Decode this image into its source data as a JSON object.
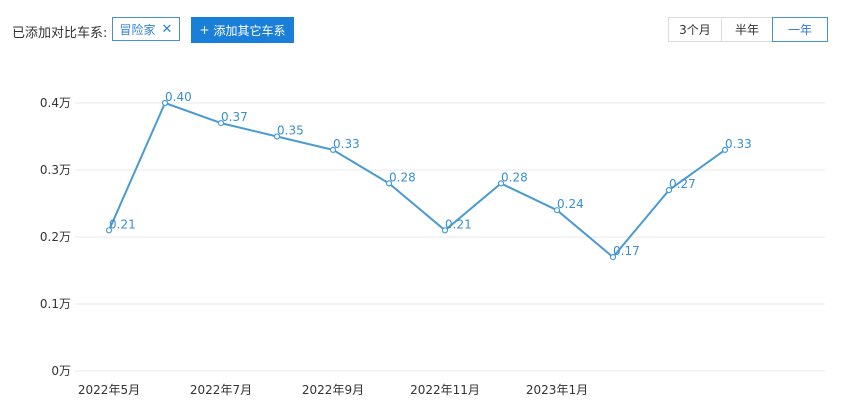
{
  "toolbar": {
    "added_label": "已添加对比车系:",
    "chip_label": "冒险家",
    "chip_close": "✕",
    "add_button_plus": "+",
    "add_button_label": "添加其它车系",
    "ranges": [
      "3个月",
      "半年",
      "一年"
    ],
    "active_range": "一年"
  },
  "colors": {
    "line": "#4a9bd4",
    "label": "#3a8fd0",
    "grid": "#e8e8e8",
    "accent": "#1a7fd9"
  },
  "chart_data": {
    "type": "line",
    "x": [
      "2022年5月",
      "2022年6月",
      "2022年7月",
      "2022年8月",
      "2022年9月",
      "2022年10月",
      "2022年11月",
      "2022年12月",
      "2023年1月",
      "2023年2月",
      "2023年3月",
      "2023年4月"
    ],
    "x_tick_labels": [
      "2022年5月",
      "2022年7月",
      "2022年9月",
      "2022年11月",
      "2023年1月"
    ],
    "values": [
      0.21,
      0.4,
      0.37,
      0.35,
      0.33,
      0.28,
      0.21,
      0.28,
      0.24,
      0.17,
      0.27,
      0.33
    ],
    "data_labels": [
      "0.21",
      "0.40",
      "0.37",
      "0.35",
      "0.33",
      "0.28",
      "0.21",
      "0.28",
      "0.24",
      "0.17",
      "0.27",
      "0.33"
    ],
    "y_ticks": [
      0,
      0.1,
      0.2,
      0.3,
      0.4
    ],
    "y_tick_labels": [
      "0万",
      "0.1万",
      "0.2万",
      "0.3万",
      "0.4万"
    ],
    "ylim": [
      0,
      0.4
    ],
    "grid": true,
    "title": "",
    "xlabel": "",
    "ylabel": ""
  }
}
